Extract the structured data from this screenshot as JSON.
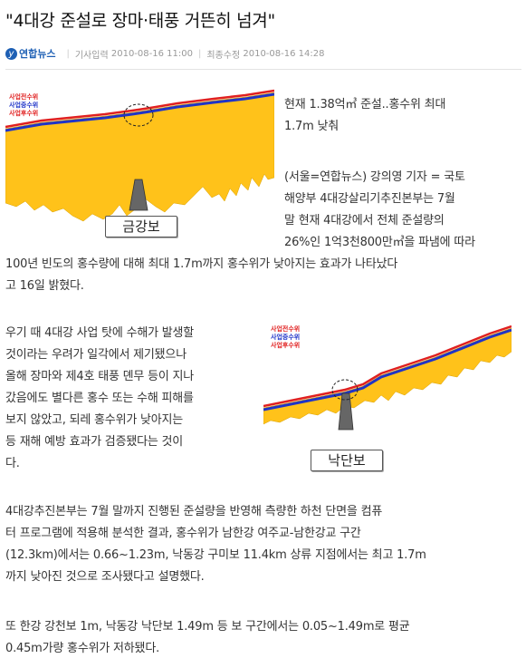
{
  "article": {
    "headline": "\"4대강 준설로 장마·태풍 거뜬히 넘겨\"",
    "meta": {
      "logo_text": "연합뉴스",
      "input_label": "기사입력",
      "input_time": "2010-08-16 11:00",
      "modified_label": "최종수정",
      "modified_time": "2010-08-16 14:28"
    },
    "subtitle_lines": [
      "현재 1.38억㎥ 준설..홍수위 최대",
      "1.7m 낮춰"
    ],
    "paragraph1": {
      "indented_lines": [
        "(서울=연합뉴스) 강의영 기자 = 국토",
        "해양부 4대강살리기추진본부는 7월",
        "말 현재 4대강에서 전체 준설량의",
        "26%인 1억3천800만㎥을 파냄에 따라"
      ],
      "full_lines": [
        "100년 빈도의 홍수량에 대해 최대 1.7m까지 홍수위가 낮아지는 효과가 나타났다",
        "고 16일 밝혔다."
      ]
    },
    "paragraph2_lines": [
      "우기 때 4대강 사업 탓에 수해가 발생할",
      "것이라는 우려가 일각에서 제기됐으나",
      "올해 장마와 제4호 태풍 뎬무 등이 지나",
      "갔음에도 별다른 홍수 또는 수해 피해를",
      "보지 않았고, 되레 홍수위가 낮아지는",
      "등 재해 예방 효과가 검증됐다는 것이",
      "다."
    ],
    "paragraph3_lines": [
      "4대강추진본부는 7월 말까지 진행된 준설량을 반영해 측량한 하천 단면을 컴퓨",
      "터 프로그램에 적용해 분석한 결과, 홍수위가 남한강 여주교-남한강교 구간",
      "(12.3km)에서는 0.66~1.23m, 낙동강 구미보 11.4km 상류 지점에서는 최고 1.7m",
      "까지 낮아진 것으로 조사됐다고 설명했다."
    ],
    "paragraph4_lines": [
      "또 한강 강천보 1m, 낙동강 낙단보 1.49m 등 보 구간에서는 0.05~1.49m로 평균",
      "0.45m가량 홍수위가 저하됐다."
    ]
  },
  "figure1": {
    "legend": [
      "사업전수위",
      "사업중수위",
      "사업후수위"
    ],
    "sign": "금강보",
    "colors": {
      "fill": "#ffc21a",
      "before": "#e02020",
      "during": "#1f34c8",
      "after": "#ff9c6a"
    }
  },
  "figure2": {
    "legend": [
      "사업전수위",
      "사업중수위",
      "사업후수위"
    ],
    "sign": "낙단보",
    "colors": {
      "fill": "#ffc21a",
      "before": "#e02020",
      "during": "#1f34c8",
      "after": "#ff9c6a"
    }
  }
}
